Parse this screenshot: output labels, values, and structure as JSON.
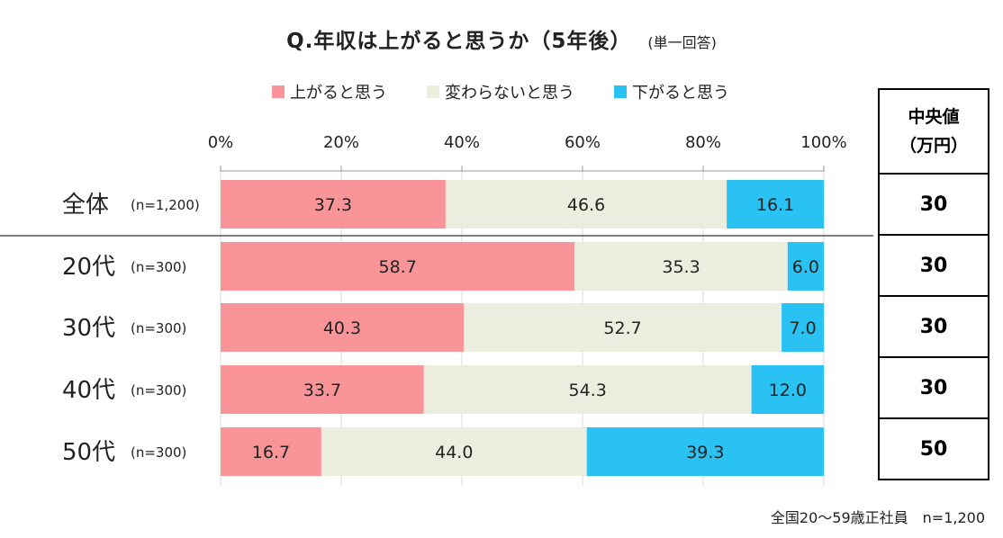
{
  "title": "Q.年収は上がると思うか（5年後）",
  "title_sub": "(単一回答)",
  "footnote": "全国20～59歳正社員　n=1,200",
  "median": {
    "header_line1": "中央値",
    "header_line2": "（万円）",
    "values": [
      "30",
      "30",
      "30",
      "30",
      "50"
    ]
  },
  "chart_data": {
    "type": "bar",
    "orientation": "horizontal",
    "stacked": true,
    "title": "Q.年収は上がると思うか（5年後）",
    "categories": [
      "全体",
      "20代",
      "30代",
      "40代",
      "50代"
    ],
    "sample_sizes": [
      "(n=1,200)",
      "(n=300)",
      "(n=300)",
      "(n=300)",
      "(n=300)"
    ],
    "series": [
      {
        "name": "上がると思う",
        "color": "#f99499",
        "values": [
          37.3,
          58.7,
          40.3,
          33.7,
          16.7
        ]
      },
      {
        "name": "変わらないと思う",
        "color": "#ebeedf",
        "values": [
          46.6,
          35.3,
          52.7,
          54.3,
          44.0
        ]
      },
      {
        "name": "下がると思う",
        "color": "#2ac2f2",
        "values": [
          16.1,
          6.0,
          7.0,
          12.0,
          39.3
        ]
      }
    ],
    "xlim": [
      0,
      100
    ],
    "xticks": [
      "0%",
      "20%",
      "40%",
      "60%",
      "80%",
      "100%"
    ],
    "legend_position": "top"
  }
}
